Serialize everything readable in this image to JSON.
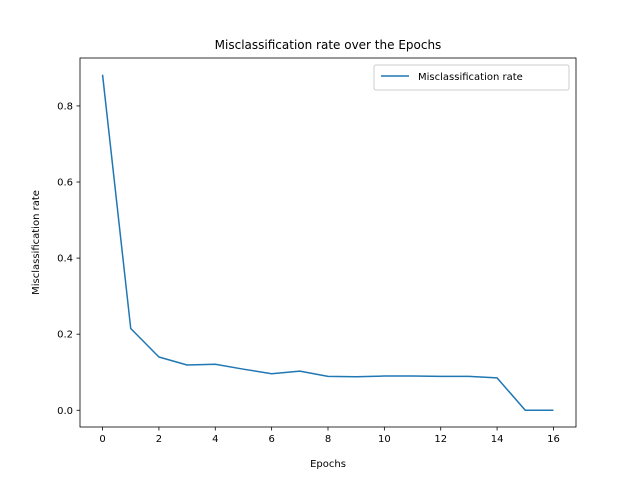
{
  "chart_data": {
    "type": "line",
    "title": "Misclassification rate over the Epochs",
    "xlabel": "Epochs",
    "ylabel": "Misclassification rate",
    "xlim": [
      -0.8,
      16.8
    ],
    "ylim": [
      -0.044,
      0.926
    ],
    "xticks": [
      0,
      2,
      4,
      6,
      8,
      10,
      12,
      14,
      16
    ],
    "yticks": [
      0.0,
      0.2,
      0.4,
      0.6,
      0.8
    ],
    "xtick_labels": [
      "0",
      "2",
      "4",
      "6",
      "8",
      "10",
      "12",
      "14",
      "16"
    ],
    "ytick_labels": [
      "0.0",
      "0.2",
      "0.4",
      "0.6",
      "0.8"
    ],
    "grid": false,
    "legend_position": "upper right",
    "series": [
      {
        "name": "Misclassification rate",
        "color": "#1f77b4",
        "x": [
          0,
          1,
          2,
          3,
          4,
          5,
          6,
          7,
          8,
          9,
          10,
          11,
          12,
          13,
          14,
          15,
          16
        ],
        "y": [
          0.882,
          0.215,
          0.14,
          0.119,
          0.121,
          0.108,
          0.096,
          0.103,
          0.089,
          0.088,
          0.09,
          0.09,
          0.089,
          0.089,
          0.085,
          0.0,
          0.0
        ]
      }
    ]
  }
}
